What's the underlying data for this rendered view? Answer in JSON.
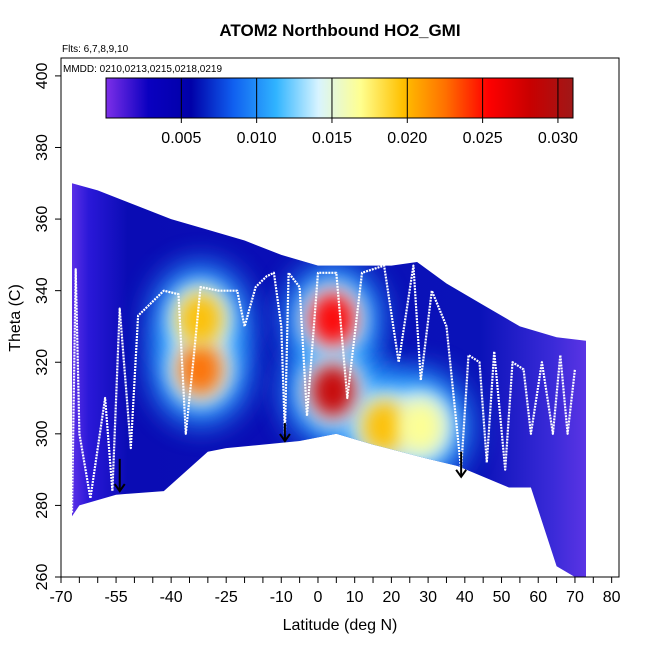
{
  "chart_data": {
    "type": "heatmap",
    "title": "ATOM2 Northbound HO2_GMI",
    "flights_note": "Flts: 6,7,8,9,10",
    "dates_note": "MMDD: 0210,0213,0215,0218,0219",
    "xlabel": "Latitude (deg N)",
    "ylabel": "Theta (C)",
    "xlim": [
      -70,
      82
    ],
    "ylim": [
      260,
      405
    ],
    "x_ticks": [
      -70,
      -55,
      -40,
      -25,
      -10,
      0,
      10,
      20,
      30,
      40,
      50,
      60,
      70,
      80
    ],
    "y_ticks": [
      260,
      280,
      300,
      320,
      340,
      360,
      380,
      400
    ],
    "colorbar": {
      "range": [
        0,
        0.031
      ],
      "ticks": [
        "0.005",
        "0.010",
        "0.015",
        "0.020",
        "0.025",
        "0.030"
      ],
      "tick_values": [
        0.005,
        0.01,
        0.015,
        0.02,
        0.025,
        0.03
      ],
      "colors": [
        "#7d2fe8",
        "#0a00c0",
        "#0000a8",
        "#1060f0",
        "#30b4ff",
        "#d8f4ff",
        "#ffff90",
        "#ffc000",
        "#ff7000",
        "#ff0000",
        "#c80000",
        "#a01818"
      ]
    },
    "field_top_boundary": [
      {
        "lat": -67,
        "theta": 370
      },
      {
        "lat": -60,
        "theta": 368
      },
      {
        "lat": -50,
        "theta": 364
      },
      {
        "lat": -40,
        "theta": 360
      },
      {
        "lat": -30,
        "theta": 357
      },
      {
        "lat": -20,
        "theta": 354
      },
      {
        "lat": -10,
        "theta": 350
      },
      {
        "lat": 0,
        "theta": 347
      },
      {
        "lat": 10,
        "theta": 347
      },
      {
        "lat": 20,
        "theta": 347
      },
      {
        "lat": 27,
        "theta": 348
      },
      {
        "lat": 35,
        "theta": 342
      },
      {
        "lat": 45,
        "theta": 336
      },
      {
        "lat": 55,
        "theta": 330
      },
      {
        "lat": 65,
        "theta": 327
      },
      {
        "lat": 73,
        "theta": 326
      }
    ],
    "field_bottom_boundary": [
      {
        "lat": 73,
        "theta": 259
      },
      {
        "lat": 70,
        "theta": 260
      },
      {
        "lat": 65,
        "theta": 263
      },
      {
        "lat": 58,
        "theta": 285
      },
      {
        "lat": 52,
        "theta": 285
      },
      {
        "lat": 45,
        "theta": 288
      },
      {
        "lat": 38,
        "theta": 291
      },
      {
        "lat": 30,
        "theta": 293
      },
      {
        "lat": 15,
        "theta": 297
      },
      {
        "lat": 5,
        "theta": 300
      },
      {
        "lat": -5,
        "theta": 298
      },
      {
        "lat": -15,
        "theta": 297
      },
      {
        "lat": -25,
        "theta": 296
      },
      {
        "lat": -30,
        "theta": 295
      },
      {
        "lat": -42,
        "theta": 284
      },
      {
        "lat": -55,
        "theta": 283
      },
      {
        "lat": -65,
        "theta": 280
      },
      {
        "lat": -67,
        "theta": 277
      }
    ],
    "hotspots": [
      {
        "lat": -32,
        "theta": 318,
        "value": 0.022
      },
      {
        "lat": -32,
        "theta": 332,
        "value": 0.019
      },
      {
        "lat": 4,
        "theta": 312,
        "value": 0.028
      },
      {
        "lat": 4,
        "theta": 332,
        "value": 0.024
      },
      {
        "lat": 18,
        "theta": 302,
        "value": 0.021
      },
      {
        "lat": 28,
        "theta": 302,
        "value": 0.018
      }
    ],
    "flight_track": [
      {
        "lat": -67,
        "theta": 278
      },
      {
        "lat": -66,
        "theta": 346
      },
      {
        "lat": -65,
        "theta": 300
      },
      {
        "lat": -62,
        "theta": 282
      },
      {
        "lat": -58,
        "theta": 310
      },
      {
        "lat": -56,
        "theta": 284
      },
      {
        "lat": -54,
        "theta": 335
      },
      {
        "lat": -51,
        "theta": 296
      },
      {
        "lat": -49,
        "theta": 333
      },
      {
        "lat": -45,
        "theta": 337
      },
      {
        "lat": -42,
        "theta": 340
      },
      {
        "lat": -38,
        "theta": 339
      },
      {
        "lat": -36,
        "theta": 300
      },
      {
        "lat": -34,
        "theta": 320
      },
      {
        "lat": -32,
        "theta": 341
      },
      {
        "lat": -27,
        "theta": 340
      },
      {
        "lat": -22,
        "theta": 340
      },
      {
        "lat": -20,
        "theta": 330
      },
      {
        "lat": -17,
        "theta": 341
      },
      {
        "lat": -14,
        "theta": 344
      },
      {
        "lat": -12,
        "theta": 345
      },
      {
        "lat": -10,
        "theta": 330
      },
      {
        "lat": -9,
        "theta": 300
      },
      {
        "lat": -8,
        "theta": 345
      },
      {
        "lat": -5,
        "theta": 341
      },
      {
        "lat": -3,
        "theta": 305
      },
      {
        "lat": 0,
        "theta": 345
      },
      {
        "lat": 5,
        "theta": 345
      },
      {
        "lat": 8,
        "theta": 310
      },
      {
        "lat": 12,
        "theta": 345
      },
      {
        "lat": 18,
        "theta": 347
      },
      {
        "lat": 22,
        "theta": 320
      },
      {
        "lat": 26,
        "theta": 347
      },
      {
        "lat": 28,
        "theta": 315
      },
      {
        "lat": 31,
        "theta": 340
      },
      {
        "lat": 35,
        "theta": 330
      },
      {
        "lat": 37,
        "theta": 310
      },
      {
        "lat": 39,
        "theta": 290
      },
      {
        "lat": 41,
        "theta": 322
      },
      {
        "lat": 44,
        "theta": 320
      },
      {
        "lat": 46,
        "theta": 292
      },
      {
        "lat": 48,
        "theta": 323
      },
      {
        "lat": 51,
        "theta": 290
      },
      {
        "lat": 53,
        "theta": 320
      },
      {
        "lat": 56,
        "theta": 318
      },
      {
        "lat": 58,
        "theta": 300
      },
      {
        "lat": 61,
        "theta": 320
      },
      {
        "lat": 64,
        "theta": 300
      },
      {
        "lat": 66,
        "theta": 322
      },
      {
        "lat": 68,
        "theta": 300
      },
      {
        "lat": 70,
        "theta": 318
      }
    ],
    "arrows": [
      {
        "lat": -54,
        "theta_from": 293,
        "theta_to": 284
      },
      {
        "lat": -9,
        "theta_from": 303,
        "theta_to": 298
      },
      {
        "lat": 39,
        "theta_from": 295,
        "theta_to": 288
      }
    ]
  }
}
